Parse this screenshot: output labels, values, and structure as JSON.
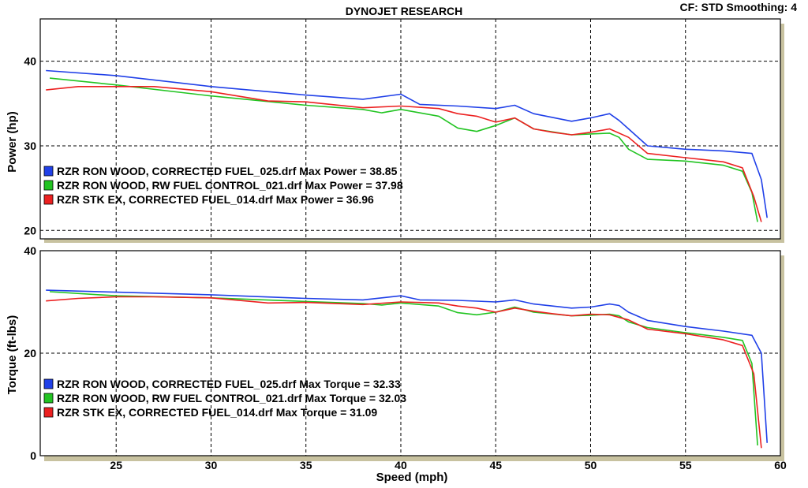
{
  "header": {
    "title": "DYNOJET RESEARCH",
    "settings": "CF: STD  Smoothing: 4"
  },
  "colors": {
    "blue": "#2040e8",
    "green": "#22c422",
    "red": "#ec2020"
  },
  "chart_data": [
    {
      "type": "line",
      "name": "power",
      "ylabel": "Power (hp)",
      "xlim": [
        21,
        60
      ],
      "ylim": [
        19,
        45
      ],
      "yticks": [
        20,
        30,
        40
      ],
      "xgrid": [
        25,
        30,
        35,
        40,
        45,
        50,
        55
      ],
      "grid": true,
      "legend_position": "bottom-left",
      "series": [
        {
          "name": "RZR RON WOOD, CORRECTED  FUEL_025.drf Max Power = 38.85",
          "color": "blue",
          "x": [
            21.3,
            25,
            30,
            35,
            38,
            40,
            41,
            43,
            45,
            46,
            47,
            49,
            50,
            51,
            51.5,
            52,
            53,
            55,
            57,
            58.5,
            59,
            59.3
          ],
          "y": [
            38.9,
            38.3,
            37.0,
            36.0,
            35.5,
            36.1,
            34.9,
            34.7,
            34.4,
            34.8,
            33.8,
            32.9,
            33.3,
            33.8,
            33.0,
            32.0,
            30.0,
            29.6,
            29.4,
            29.1,
            26.0,
            21.5
          ]
        },
        {
          "name": "RZR RON WOOD, RW  FUEL CONTROL_021.drf Max Power = 37.98",
          "color": "green",
          "x": [
            21.5,
            25,
            30,
            35,
            38,
            39,
            40,
            42,
            43,
            44,
            45,
            46,
            47,
            49,
            50,
            51,
            51.5,
            52,
            53,
            55,
            57,
            58,
            58.5,
            58.8
          ],
          "y": [
            38.0,
            37.2,
            35.9,
            34.8,
            34.3,
            33.9,
            34.3,
            33.5,
            32.1,
            31.7,
            32.4,
            33.3,
            32.0,
            31.3,
            31.4,
            31.5,
            31.0,
            29.6,
            28.4,
            28.2,
            27.7,
            27.0,
            24.5,
            21.0
          ]
        },
        {
          "name": "RZR STK EX, CORRECTED FUEL_014.drf Max Power = 36.96",
          "color": "red",
          "x": [
            21.3,
            23,
            25,
            27,
            30,
            33,
            35,
            38,
            40,
            42,
            43,
            44,
            45,
            46,
            47,
            48,
            49,
            50,
            51,
            52,
            53,
            55,
            57,
            58,
            58.6,
            59
          ],
          "y": [
            36.6,
            37.0,
            37.0,
            37.0,
            36.4,
            35.3,
            35.2,
            34.5,
            34.7,
            34.4,
            33.8,
            33.5,
            32.8,
            33.3,
            32.0,
            31.6,
            31.3,
            31.6,
            32.0,
            31.0,
            29.1,
            28.6,
            28.1,
            27.4,
            24.0,
            21.0
          ]
        }
      ]
    },
    {
      "type": "line",
      "name": "torque",
      "ylabel": "Torque (ft-lbs)",
      "xlabel": "Speed (mph)",
      "xlim": [
        21,
        60
      ],
      "ylim": [
        0,
        40
      ],
      "yticks": [
        0,
        20,
        40
      ],
      "xticks": [
        25,
        30,
        35,
        40,
        45,
        50,
        55,
        60
      ],
      "xgrid": [
        25,
        30,
        35,
        40,
        45,
        50,
        55
      ],
      "grid": true,
      "legend_position": "bottom-left",
      "series": [
        {
          "name": "RZR RON WOOD, CORRECTED  FUEL_025.drf Max Torque = 32.33",
          "color": "blue",
          "x": [
            21.3,
            25,
            30,
            35,
            38,
            40,
            41,
            43,
            45,
            46,
            47,
            49,
            50,
            51,
            51.5,
            52,
            53,
            55,
            57,
            58.5,
            59,
            59.3
          ],
          "y": [
            32.3,
            31.9,
            31.4,
            30.7,
            30.4,
            31.2,
            30.4,
            30.3,
            30.0,
            30.4,
            29.6,
            28.8,
            29.0,
            29.6,
            29.3,
            28.0,
            26.4,
            25.2,
            24.3,
            23.5,
            20.0,
            2.5
          ]
        },
        {
          "name": "RZR RON WOOD, RW  FUEL CONTROL_021.drf Max Torque = 32.03",
          "color": "green",
          "x": [
            21.5,
            25,
            30,
            35,
            38,
            39,
            40,
            42,
            43,
            44,
            45,
            46,
            47,
            49,
            50,
            51,
            51.5,
            52,
            53,
            55,
            57,
            58,
            58.5,
            58.8
          ],
          "y": [
            32.0,
            31.2,
            30.8,
            30.1,
            29.7,
            29.4,
            29.8,
            29.2,
            27.9,
            27.5,
            28.0,
            29.0,
            28.0,
            27.3,
            27.4,
            27.6,
            27.3,
            26.1,
            25.0,
            24.0,
            23.1,
            22.5,
            18.0,
            2.0
          ]
        },
        {
          "name": "RZR STK EX, CORRECTED FUEL_014.drf Max Torque = 31.09",
          "color": "red",
          "x": [
            21.3,
            23,
            25,
            27,
            30,
            33,
            35,
            38,
            40,
            42,
            43,
            44,
            45,
            46,
            47,
            48,
            49,
            50,
            51,
            52,
            53,
            55,
            57,
            58,
            58.6,
            59
          ],
          "y": [
            30.2,
            30.7,
            31.0,
            31.0,
            30.8,
            29.8,
            29.9,
            29.5,
            30.0,
            29.8,
            29.2,
            28.8,
            28.0,
            28.8,
            28.2,
            27.7,
            27.3,
            27.6,
            27.5,
            26.5,
            24.7,
            23.8,
            22.6,
            21.5,
            16.0,
            1.5
          ]
        }
      ]
    }
  ]
}
